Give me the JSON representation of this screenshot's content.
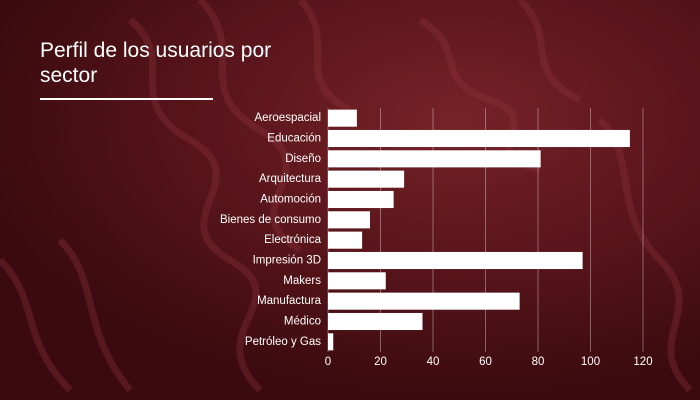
{
  "chart_data": {
    "type": "barh",
    "title": "Perfil de los usuarios por sector",
    "categories": [
      "Aeroespacial",
      "Educación",
      "Diseño",
      "Arquitectura",
      "Automoción",
      "Bienes de consumo",
      "Electrónica",
      "Impresión 3D",
      "Makers",
      "Manufactura",
      "Médico",
      "Petróleo y Gas"
    ],
    "values": [
      11,
      115,
      81,
      29,
      25,
      16,
      13,
      97,
      22,
      73,
      36,
      2
    ],
    "color": "#ffffff",
    "xlim": [
      0,
      120
    ],
    "xticks": [
      0,
      20,
      40,
      60,
      80,
      100,
      120
    ],
    "grid": true
  }
}
